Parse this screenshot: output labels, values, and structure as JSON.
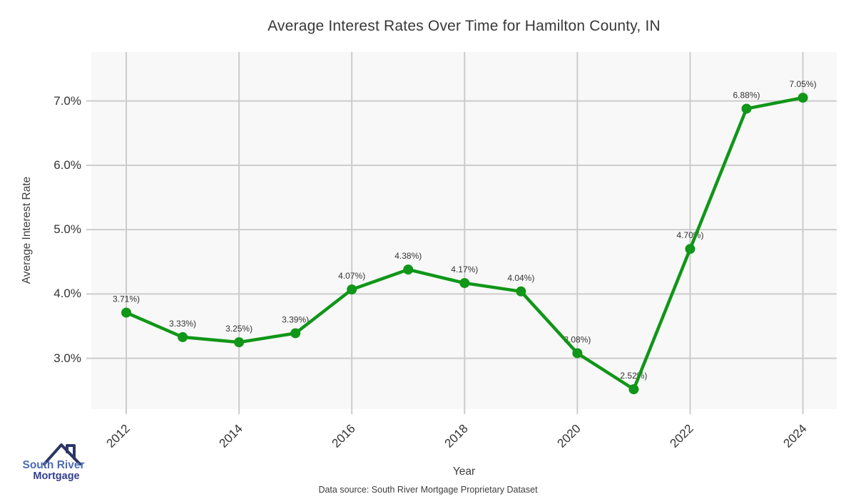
{
  "chart_data": {
    "type": "line",
    "title": "Average Interest Rates Over Time for Hamilton County, IN",
    "xlabel": "Year",
    "ylabel": "Average Interest Rate",
    "x": [
      2012,
      2013,
      2014,
      2015,
      2016,
      2017,
      2018,
      2019,
      2020,
      2021,
      2022,
      2023,
      2024
    ],
    "values": [
      3.71,
      3.33,
      3.25,
      3.39,
      4.07,
      4.38,
      4.17,
      4.04,
      3.08,
      2.52,
      4.7,
      6.88,
      7.05
    ],
    "point_labels": [
      "3.71%)",
      "3.33%)",
      "3.25%)",
      "3.39%)",
      "4.07%)",
      "4.38%)",
      "4.17%)",
      "4.04%)",
      "3.08%)",
      "2.52%)",
      "4.70%)",
      "6.88%)",
      "7.05%)"
    ],
    "x_tick_labels": [
      "2012",
      "2014",
      "2016",
      "2018",
      "2020",
      "2022",
      "2024"
    ],
    "x_tick_values": [
      2012,
      2014,
      2016,
      2018,
      2020,
      2022,
      2024
    ],
    "y_tick_labels": [
      "3.0%",
      "4.0%",
      "5.0%",
      "6.0%",
      "7.0%"
    ],
    "y_tick_values": [
      3,
      4,
      5,
      6,
      7
    ],
    "xlim": [
      2011.38,
      2024.6
    ],
    "ylim": [
      2.21,
      7.76
    ],
    "grid": true,
    "legend": false,
    "line_color": "#109618",
    "marker_color": "#109618",
    "plot_bg_color": "#f8f8f8",
    "grid_color": "#cccccc",
    "tick_color": "#cccccc",
    "point_label_color": "#333333"
  },
  "footer": {
    "source_note": "Data source: South River Mortgage Proprietary Dataset"
  },
  "logo": {
    "name": "South River Mortgage",
    "line1": "South River",
    "line2": "Mortgage",
    "roof_color": "#2b3564",
    "line1_color": "#4c6cb3",
    "line2_color": "#333f8f"
  }
}
